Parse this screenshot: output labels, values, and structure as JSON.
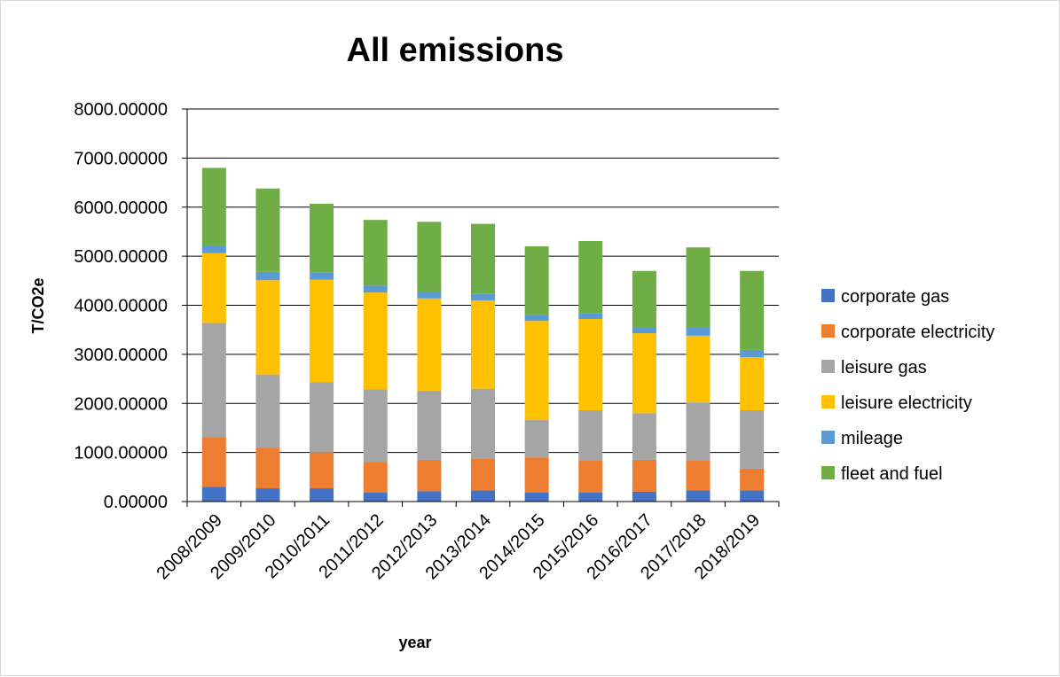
{
  "chart_data": {
    "type": "bar",
    "stacked": true,
    "title": "All emissions",
    "xlabel": "year",
    "ylabel": "T/CO2e",
    "ylim": [
      0,
      8000
    ],
    "yticks": [
      "0.00000",
      "1000.00000",
      "2000.00000",
      "3000.00000",
      "4000.00000",
      "5000.00000",
      "6000.00000",
      "7000.00000",
      "8000.00000"
    ],
    "grid": "horizontal",
    "legend_position": "right",
    "categories": [
      "2008/2009",
      "2009/2010",
      "2010/2011",
      "2011/2012",
      "2012/2013",
      "2013/2014",
      "2014/2015",
      "2015/2016",
      "2016/2017",
      "2017/2018",
      "2018/2019"
    ],
    "series": [
      {
        "name": "corporate gas",
        "color": "#4472c4",
        "values": [
          300,
          270,
          270,
          180,
          210,
          230,
          180,
          180,
          200,
          230,
          230
        ]
      },
      {
        "name": "corporate electricity",
        "color": "#ed7d31",
        "values": [
          1010,
          830,
          730,
          630,
          640,
          650,
          720,
          650,
          650,
          600,
          440
        ]
      },
      {
        "name": "leisure gas",
        "color": "#a5a5a5",
        "values": [
          2330,
          1490,
          1430,
          1480,
          1410,
          1420,
          760,
          1030,
          950,
          1190,
          1190
        ]
      },
      {
        "name": "leisure electricity",
        "color": "#ffc000",
        "values": [
          1420,
          1920,
          2090,
          1970,
          1880,
          1800,
          2020,
          1860,
          1630,
          1360,
          1080
        ]
      },
      {
        "name": "mileage",
        "color": "#5b9bd5",
        "values": [
          160,
          170,
          150,
          140,
          140,
          130,
          120,
          120,
          110,
          160,
          150
        ]
      },
      {
        "name": "fleet and fuel",
        "color": "#70ad47",
        "values": [
          1580,
          1700,
          1400,
          1340,
          1420,
          1430,
          1400,
          1470,
          1160,
          1640,
          1610
        ]
      }
    ]
  }
}
